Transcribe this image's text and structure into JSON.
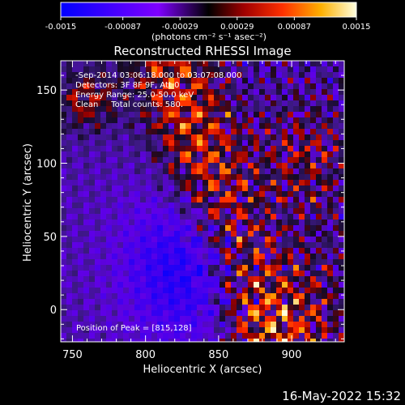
{
  "colorbar": {
    "ticks": [
      "-0.0015",
      "-0.00087",
      "-0.00029",
      "0.00029",
      "0.00087",
      "0.0015"
    ],
    "units_label": "(photons cm⁻² s⁻¹ asec⁻²)",
    "min": -0.0015,
    "max": 0.0015
  },
  "chart_data": {
    "type": "heatmap",
    "title": "Reconstructed RHESSI Image",
    "xlabel": "Heliocentric X (arcsec)",
    "ylabel": "Heliocentric Y (arcsec)",
    "xlim": [
      742,
      936
    ],
    "ylim": [
      -22,
      170
    ],
    "x_ticks": [
      "750",
      "800",
      "850",
      "900"
    ],
    "y_ticks": [
      "0",
      "50",
      "100",
      "150"
    ],
    "x_tick_values": [
      750,
      800,
      850,
      900
    ],
    "y_tick_values": [
      0,
      50,
      100,
      150
    ],
    "annotations": {
      "time": "-Sep-2014 03:06:18.000 to 03:07:08.000",
      "detectors": "Detectors: 3F 8F 9F, Att 0",
      "energy": "Energy Range: 25.0-50.0 keV",
      "clean": "Clean     Total counts: 580.",
      "peak": "Position of Peak = [815,128]"
    },
    "peak_position": [
      815,
      128
    ]
  },
  "footer": {
    "timestamp": "16-May-2022 15:32"
  }
}
